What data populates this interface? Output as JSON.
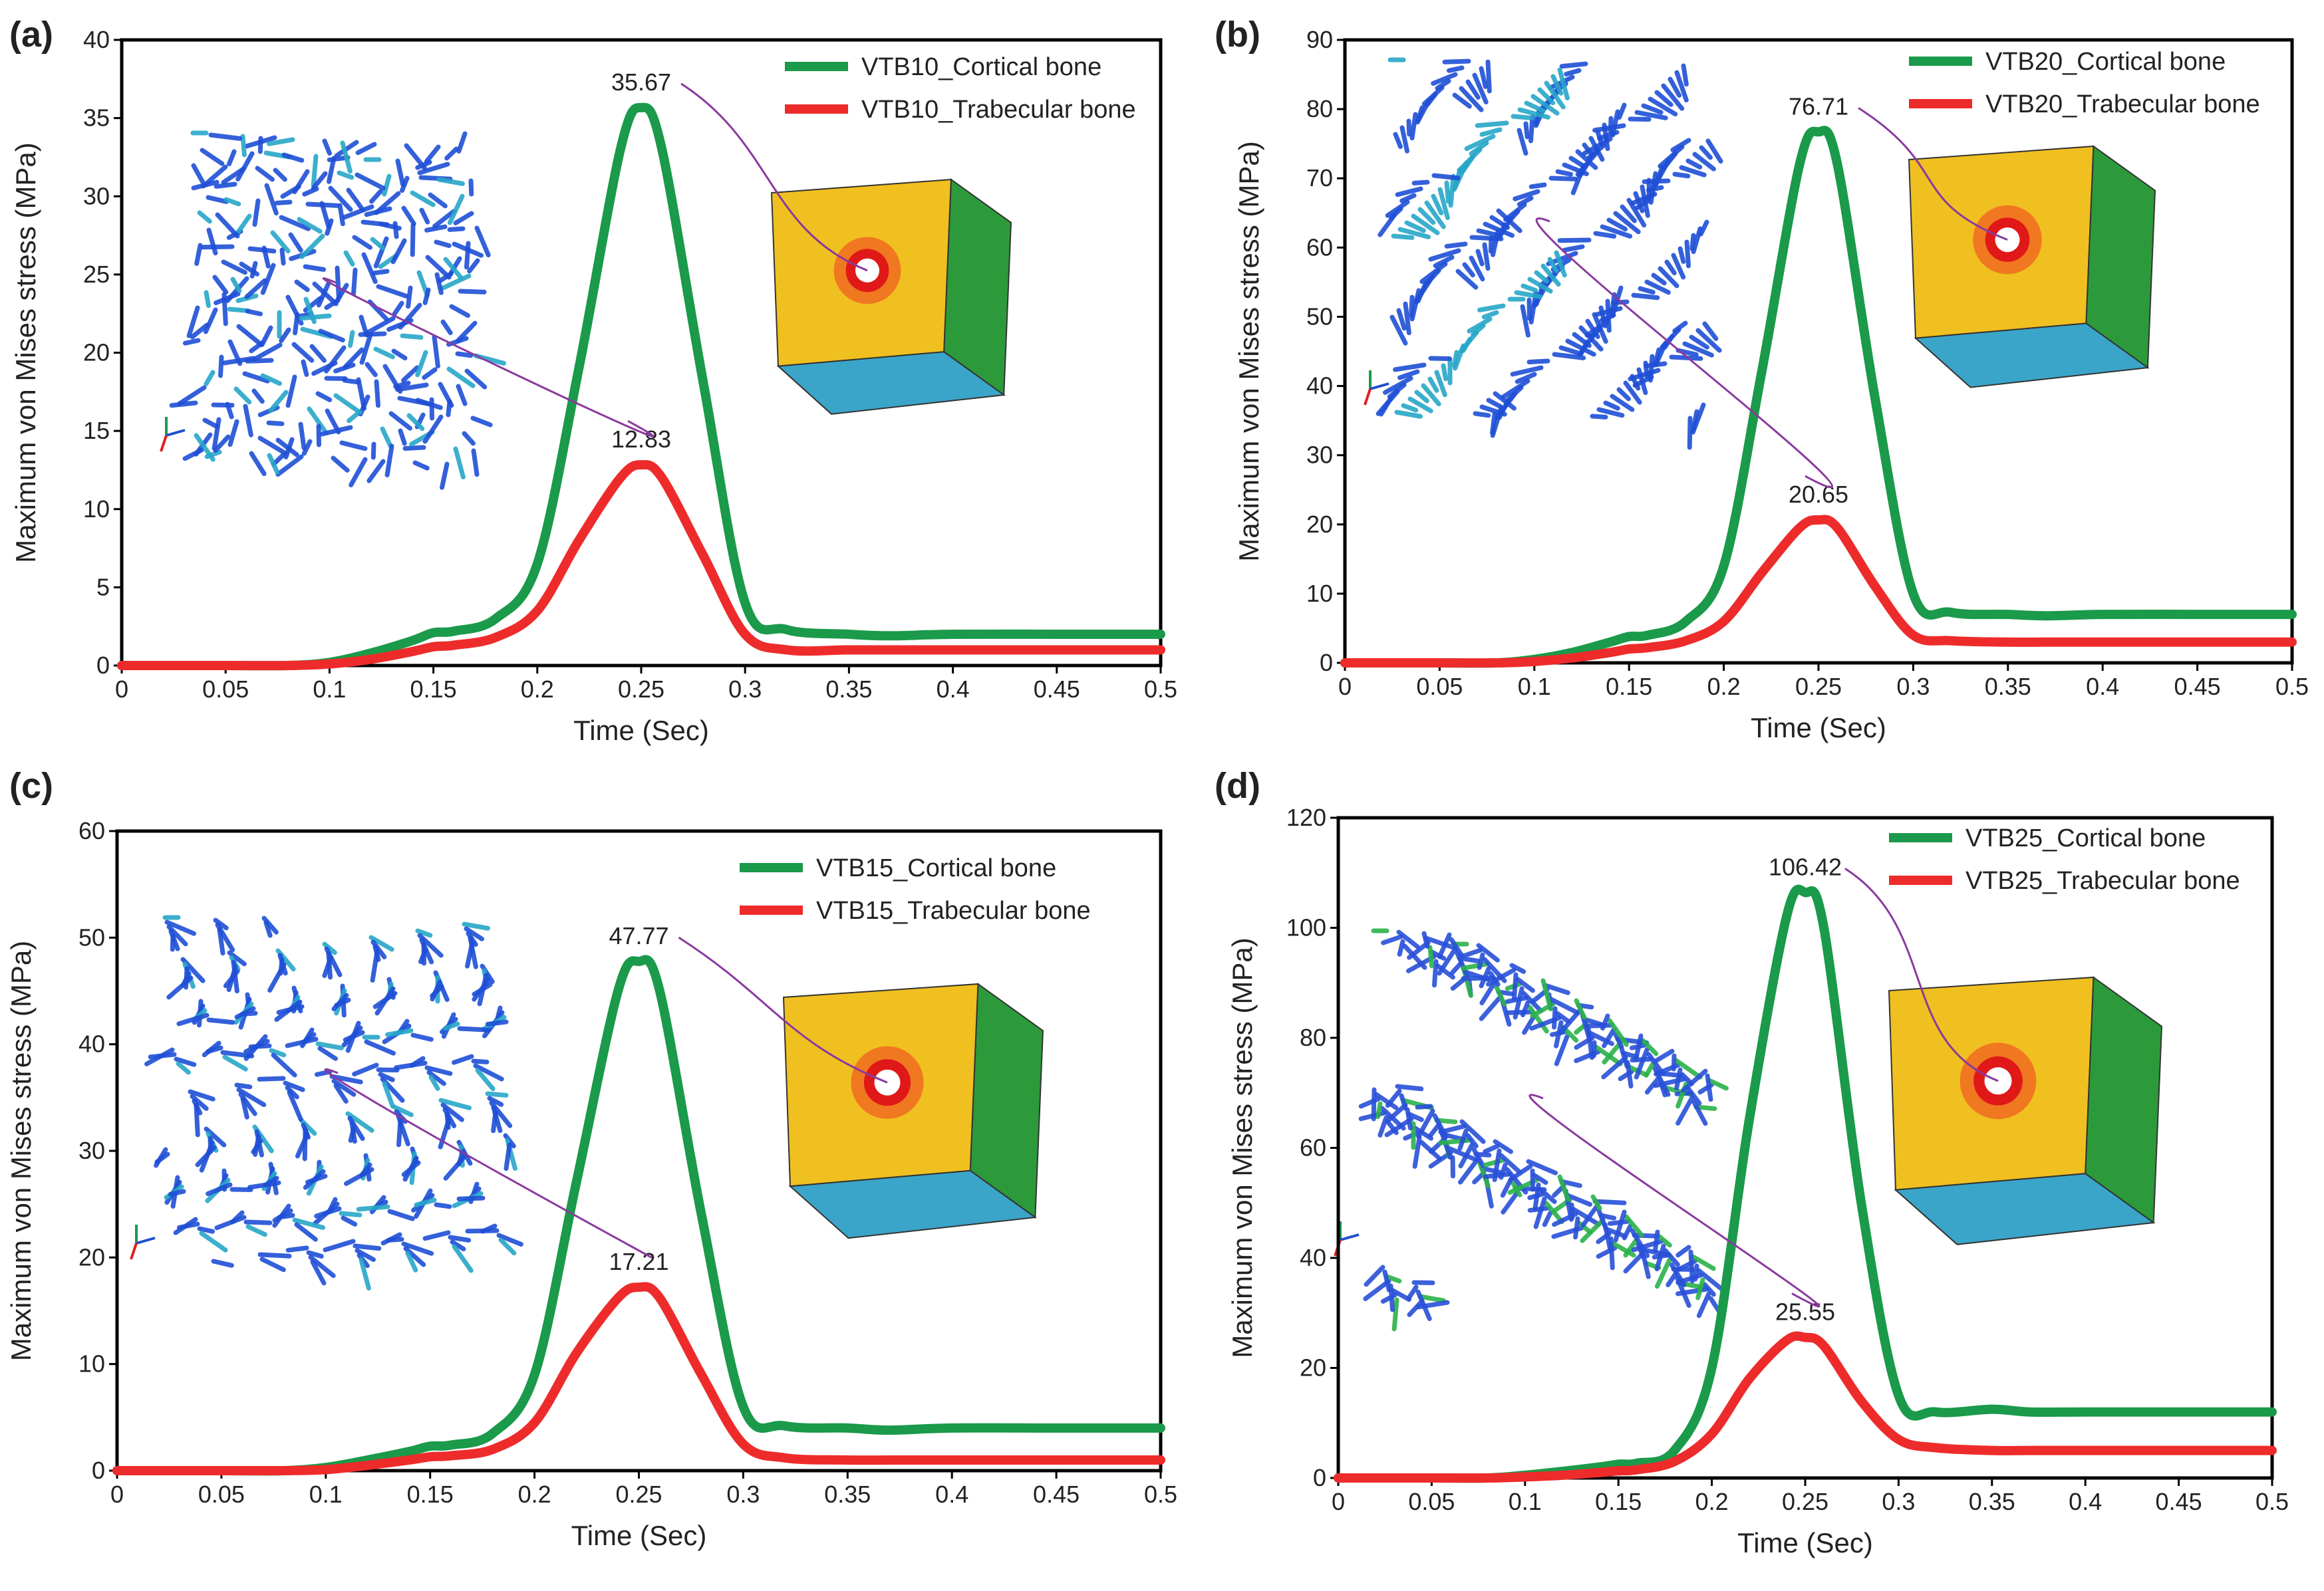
{
  "chart_data": [
    {
      "panel": "(a)",
      "type": "line",
      "xlabel": "Time (Sec)",
      "ylabel": "Maximum von Mises stress (MPa)",
      "xlim": [
        0,
        0.5
      ],
      "ylim": [
        0,
        40
      ],
      "xticks": [
        "0",
        "0.05",
        "0.1",
        "0.15",
        "0.2",
        "0.25",
        "0.3",
        "0.35",
        "0.4",
        "0.45",
        "0.5"
      ],
      "yticks": [
        "0",
        "5",
        "10",
        "15",
        "20",
        "25",
        "30",
        "35",
        "40"
      ],
      "series": [
        {
          "name": "VTB10_Cortical bone",
          "color": "#1a9a4a",
          "x": [
            0,
            0.05,
            0.08,
            0.1,
            0.12,
            0.14,
            0.15,
            0.16,
            0.18,
            0.2,
            0.22,
            0.24,
            0.25,
            0.26,
            0.28,
            0.3,
            0.32,
            0.35,
            0.37,
            0.4,
            0.45,
            0.5
          ],
          "y": [
            0,
            0,
            0,
            0.2,
            0.8,
            1.6,
            2.1,
            2.2,
            3,
            6.5,
            19,
            33,
            35.67,
            33,
            18,
            4,
            2.3,
            2,
            1.9,
            2,
            2,
            2
          ]
        },
        {
          "name": "VTB10_Trabecular bone",
          "color": "#ee2b2b",
          "x": [
            0,
            0.05,
            0.08,
            0.1,
            0.12,
            0.14,
            0.15,
            0.16,
            0.18,
            0.2,
            0.22,
            0.24,
            0.25,
            0.26,
            0.28,
            0.3,
            0.32,
            0.35,
            0.37,
            0.4,
            0.45,
            0.5
          ],
          "y": [
            0,
            0,
            0,
            0.1,
            0.4,
            0.9,
            1.2,
            1.3,
            1.8,
            3.5,
            8,
            12,
            12.83,
            12,
            7,
            2,
            1,
            1,
            1,
            1,
            1,
            1
          ]
        }
      ],
      "annotations": [
        "35.67",
        "12.83"
      ],
      "legend_position": "top-right"
    },
    {
      "panel": "(b)",
      "type": "line",
      "xlabel": "Time (Sec)",
      "ylabel": "Maximum von Mises stress (MPa)",
      "xlim": [
        0,
        0.5
      ],
      "ylim": [
        0,
        90
      ],
      "xticks": [
        "0",
        "0.05",
        "0.1",
        "0.15",
        "0.2",
        "0.25",
        "0.3",
        "0.35",
        "0.4",
        "0.45",
        "0.5"
      ],
      "yticks": [
        "0",
        "10",
        "20",
        "30",
        "40",
        "50",
        "60",
        "70",
        "80",
        "90"
      ],
      "series": [
        {
          "name": "VTB20_Cortical bone",
          "color": "#1a9a4a",
          "x": [
            0,
            0.05,
            0.08,
            0.1,
            0.12,
            0.14,
            0.15,
            0.16,
            0.18,
            0.2,
            0.22,
            0.24,
            0.25,
            0.26,
            0.28,
            0.3,
            0.32,
            0.35,
            0.37,
            0.4,
            0.45,
            0.5
          ],
          "y": [
            0,
            0,
            0,
            0.5,
            1.5,
            3,
            3.8,
            4,
            6,
            14,
            42,
            72,
            76.71,
            72,
            38,
            10,
            7.3,
            7,
            6.8,
            7,
            7,
            7
          ]
        },
        {
          "name": "VTB20_Trabecular bone",
          "color": "#ee2b2b",
          "x": [
            0,
            0.05,
            0.08,
            0.1,
            0.12,
            0.14,
            0.15,
            0.16,
            0.18,
            0.2,
            0.22,
            0.24,
            0.25,
            0.26,
            0.28,
            0.3,
            0.32,
            0.35,
            0.37,
            0.4,
            0.45,
            0.5
          ],
          "y": [
            0,
            0,
            0,
            0.2,
            0.7,
            1.5,
            2,
            2.2,
            3.2,
            6,
            13,
            19.5,
            20.65,
            19.5,
            11,
            4,
            3.2,
            3,
            3,
            3,
            3,
            3
          ]
        }
      ],
      "annotations": [
        "76.71",
        "20.65"
      ],
      "legend_position": "top-right"
    },
    {
      "panel": "(c)",
      "type": "line",
      "xlabel": "Time (Sec)",
      "ylabel": "Maximum von Mises stress (MPa)",
      "xlim": [
        0,
        0.5
      ],
      "ylim": [
        0,
        60
      ],
      "xticks": [
        "0",
        "0.05",
        "0.1",
        "0.15",
        "0.2",
        "0.25",
        "0.3",
        "0.35",
        "0.4",
        "0.45",
        "0.5"
      ],
      "yticks": [
        "0",
        "10",
        "20",
        "30",
        "40",
        "50",
        "60"
      ],
      "series": [
        {
          "name": "VTB15_Cortical bone",
          "color": "#1a9a4a",
          "x": [
            0,
            0.05,
            0.08,
            0.1,
            0.12,
            0.14,
            0.15,
            0.16,
            0.18,
            0.2,
            0.22,
            0.24,
            0.25,
            0.26,
            0.28,
            0.3,
            0.32,
            0.35,
            0.37,
            0.4,
            0.45,
            0.5
          ],
          "y": [
            0,
            0,
            0,
            0.3,
            1,
            1.8,
            2.3,
            2.4,
            3.5,
            9,
            27,
            45,
            47.77,
            45,
            24,
            6,
            4.2,
            4,
            3.8,
            4,
            4,
            4
          ]
        },
        {
          "name": "VTB15_Trabecular bone",
          "color": "#ee2b2b",
          "x": [
            0,
            0.05,
            0.08,
            0.1,
            0.12,
            0.14,
            0.15,
            0.16,
            0.18,
            0.2,
            0.22,
            0.24,
            0.25,
            0.26,
            0.28,
            0.3,
            0.32,
            0.35,
            0.37,
            0.4,
            0.45,
            0.5
          ],
          "y": [
            0,
            0,
            0,
            0.1,
            0.5,
            1,
            1.3,
            1.4,
            2,
            4.5,
            11,
            16.2,
            17.21,
            16.2,
            9,
            2.5,
            1.2,
            1,
            1,
            1,
            1,
            1
          ]
        }
      ],
      "annotations": [
        "47.77",
        "17.21"
      ],
      "legend_position": "top-right"
    },
    {
      "panel": "(d)",
      "type": "line",
      "xlabel": "Time (Sec)",
      "ylabel": "Maximum von Mises stress (MPa)",
      "xlim": [
        0,
        0.5
      ],
      "ylim": [
        0,
        120
      ],
      "xticks": [
        "0",
        "0.05",
        "0.1",
        "0.15",
        "0.2",
        "0.25",
        "0.3",
        "0.35",
        "0.4",
        "0.45",
        "0.5"
      ],
      "yticks": [
        "0",
        "20",
        "40",
        "60",
        "80",
        "100",
        "120"
      ],
      "series": [
        {
          "name": "VTB25_Cortical bone",
          "color": "#1a9a4a",
          "x": [
            0,
            0.05,
            0.08,
            0.1,
            0.12,
            0.14,
            0.15,
            0.16,
            0.18,
            0.2,
            0.22,
            0.24,
            0.25,
            0.26,
            0.28,
            0.3,
            0.32,
            0.35,
            0.37,
            0.4,
            0.45,
            0.5
          ],
          "y": [
            0,
            0,
            0,
            0.5,
            1.2,
            2,
            2.5,
            2.7,
            5,
            20,
            65,
            102,
            106.42,
            100,
            50,
            15,
            12,
            12.5,
            12,
            12,
            12,
            12
          ]
        },
        {
          "name": "VTB25_Trabecular bone",
          "color": "#ee2b2b",
          "x": [
            0,
            0.05,
            0.08,
            0.1,
            0.12,
            0.14,
            0.15,
            0.16,
            0.18,
            0.2,
            0.22,
            0.24,
            0.25,
            0.26,
            0.28,
            0.3,
            0.32,
            0.35,
            0.37,
            0.4,
            0.45,
            0.5
          ],
          "y": [
            0,
            0,
            0,
            0.2,
            0.5,
            1,
            1.3,
            1.5,
            3,
            8,
            18,
            25,
            25.55,
            24,
            14,
            7,
            5.5,
            5,
            5,
            5,
            5,
            5
          ]
        }
      ],
      "annotations": [
        "106.42",
        "25.55"
      ],
      "legend_position": "top-right"
    }
  ],
  "colors": {
    "cortical": "#1a9a4a",
    "trabecular": "#ee2b2b",
    "arrow": "#8a3a9e",
    "axis": "#000000"
  },
  "insets": [
    "trabecular-lattice-model",
    "cortical-shell-stress-cube",
    "axis-triad-icon"
  ]
}
